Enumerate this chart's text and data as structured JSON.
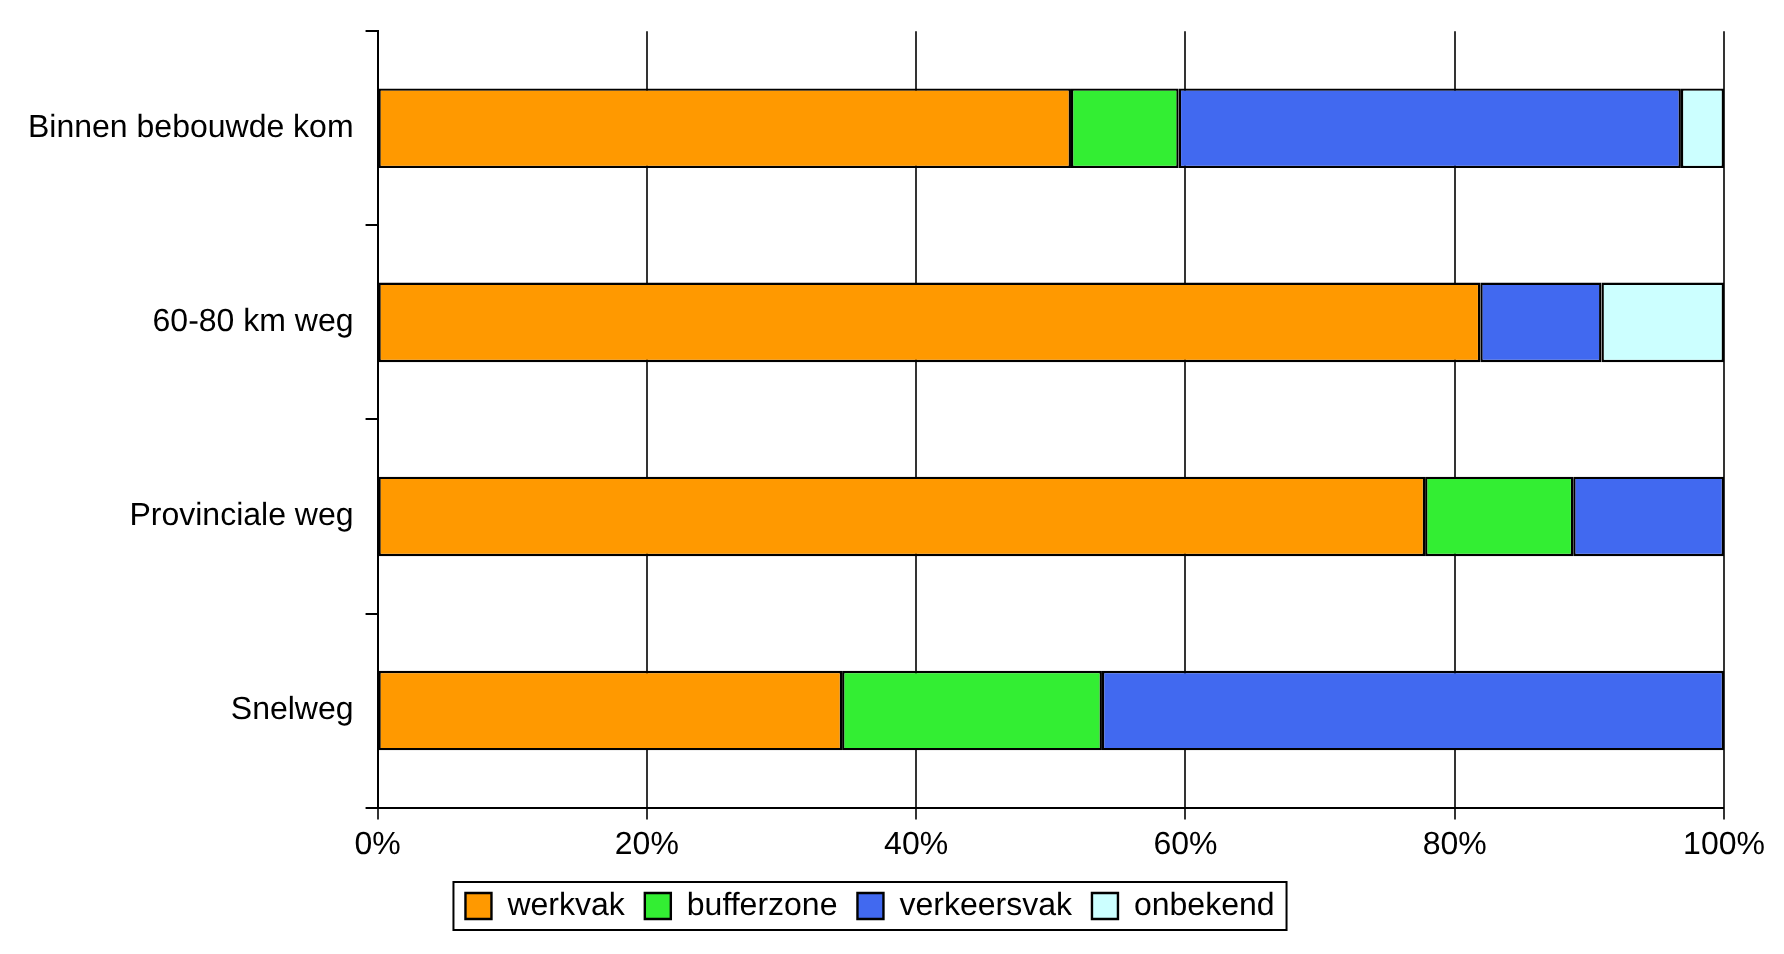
{
  "chart_data": {
    "type": "bar",
    "orientation": "horizontal",
    "stacked": true,
    "categories": [
      "Binnen bebouwde kom",
      "60-80 km weg",
      "Provinciale weg",
      "Snelweg"
    ],
    "series": [
      {
        "name": "werkvak",
        "color": "#ff9900",
        "values": [
          51.5,
          81.9,
          77.8,
          34.5
        ]
      },
      {
        "name": "bufferzone",
        "color": "#33ee33",
        "values": [
          8,
          null,
          11,
          19.3
        ]
      },
      {
        "name": "verkeersvak",
        "color": "#4169f0",
        "values": [
          37.3,
          9,
          11.2,
          46.2
        ]
      },
      {
        "name": "onbekend",
        "color": "#ccffff",
        "values": [
          3.2,
          9.1,
          null,
          null
        ]
      }
    ],
    "xlim": [
      0,
      100
    ],
    "xticks": [
      {
        "value": 0,
        "label": "0%"
      },
      {
        "value": 20,
        "label": "20%"
      },
      {
        "value": 40,
        "label": "40%"
      },
      {
        "value": 60,
        "label": "60%"
      },
      {
        "value": 80,
        "label": "80%"
      },
      {
        "value": 100,
        "label": "100%"
      }
    ],
    "grid": "x",
    "legend": "bottom"
  }
}
